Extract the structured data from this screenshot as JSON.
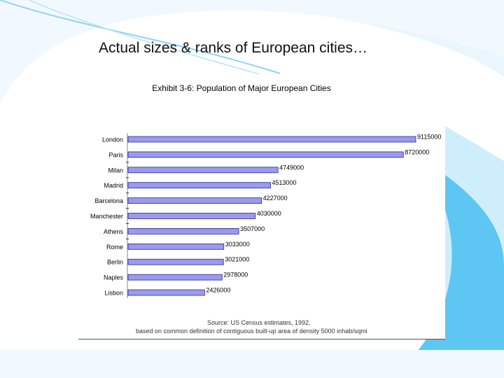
{
  "slide": {
    "title": "Actual sizes & ranks of European cities…"
  },
  "theme": {
    "bar_fill": "#9a9af2",
    "bar_stroke": "#2b2b7a",
    "decor_light": "#dff1fc",
    "decor_blue": "#5ec6f3",
    "decor_line": "#8fd3f2"
  },
  "chart_data": {
    "type": "bar",
    "orientation": "horizontal",
    "title": "Exhibit 3-6: Population of Major European Cities",
    "categories": [
      "London",
      "Paris",
      "Milan",
      "Madrid",
      "Barcelona",
      "Manchester",
      "Athens",
      "Rome",
      "Berlin",
      "Naples",
      "Lisbon"
    ],
    "values": [
      9115000,
      8720000,
      4749000,
      4513000,
      4227000,
      4030000,
      3507000,
      3033000,
      3021000,
      2978000,
      2426000
    ],
    "value_labels": [
      "9115000",
      "8720000",
      "4749000",
      "4513000",
      "4227000",
      "4030000",
      "3507000",
      "3033000",
      "3021000",
      "2978000",
      "2426000"
    ],
    "xlim": [
      0,
      9115000
    ],
    "grid": false,
    "legend": "none",
    "source_note": "Source: US Census estimates, 1992,",
    "source_note_2": "based on common definition of contiguous built-up area of density 5000 inhab/sqmi"
  }
}
